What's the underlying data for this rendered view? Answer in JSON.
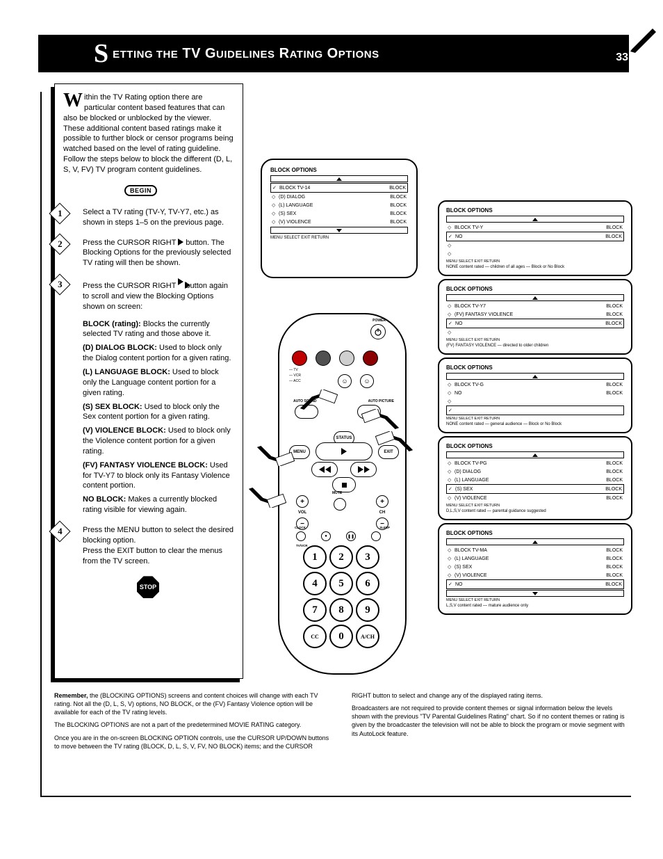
{
  "header": {
    "big_letter": "S",
    "title_small": "ETTING THE",
    "title_main": " TV G",
    "title_small2": "UIDELINES",
    "title_main2": " R",
    "title_small3": "ATING",
    "title_main3": " O",
    "title_small4": "PTIONS",
    "page": "33"
  },
  "intro": "ithin the TV Rating option there are particular content based features that can also be blocked or unblocked by the viewer. These additional content based ratings make it possible to further block or censor programs being watched based on the level of rating guideline. Follow the steps below to block the different (D, L, S, V, FV) TV program content guidelines.",
  "begin_label": "BEGIN",
  "stop_label": "STOP",
  "steps": [
    {
      "n": "1",
      "text_a": "Select a TV rating (TV-Y, TV-Y7, etc.) as shown in steps 1–5 on the previous page.",
      "text_b": ""
    },
    {
      "n": "2",
      "text_a": "Press the CURSOR RIGHT",
      "text_b": "button. The Blocking Options for the previously selected TV rating will then be shown.",
      "icon": "play"
    },
    {
      "n": "3",
      "text_a": "Press the CURSOR RIGHT",
      "text_b": "button again to scroll and view the Blocking Options shown on screen:",
      "icon": "ff",
      "options": [
        "BLOCK (rating): Blocks the currently selected TV rating and those above it.",
        "(D) DIALOG BLOCK: Used to block only the Dialog content portion for a given rating.",
        "(L) LANGUAGE BLOCK: Used to block only the Language content portion for a given rating.",
        "(S) SEX BLOCK: Used to block only the Sex content portion for a given rating.",
        "(V) VIOLENCE BLOCK: Used to block only the Violence content portion for a given rating.",
        "(FV) FANTASY VIOLENCE BLOCK: Used for TV-Y7 to block only its Fantasy Violence content portion.",
        "NO BLOCK: Makes a currently blocked rating visible for viewing again."
      ]
    },
    {
      "n": "4",
      "text_a": "Press the MENU button to select the desired blocking option.",
      "text_b": "Press the EXIT button to clear the menus from the TV screen."
    }
  ],
  "tv_menu": {
    "title": "BLOCK OPTIONS",
    "top_arrow": true,
    "items": [
      {
        "mark": "✓",
        "left": "BLOCK TV-14",
        "right": "BLOCK",
        "sel": true
      },
      {
        "mark": "◇",
        "left": "(D) DIALOG",
        "right": "BLOCK"
      },
      {
        "mark": "◇",
        "left": "(L) LANGUAGE",
        "right": "BLOCK"
      },
      {
        "mark": "◇",
        "left": "(S) SEX",
        "right": "BLOCK"
      },
      {
        "mark": "◇",
        "left": "(V) VIOLENCE",
        "right": "BLOCK"
      }
    ],
    "bottom_arrow": true,
    "footer": "MENU    SELECT      EXIT    RETURN"
  },
  "right_panels": [
    {
      "title": "BLOCK OPTIONS",
      "items": [
        {
          "mark": "◇",
          "left": "BLOCK TV-Y",
          "right": "BLOCK",
          "sel": false
        },
        {
          "mark": "✓",
          "left": "NO",
          "right": "BLOCK",
          "sel": true
        },
        {
          "mark": "◇",
          "left": "",
          "right": ""
        },
        {
          "mark": "◇",
          "left": "",
          "right": ""
        }
      ],
      "footer": "MENU    SELECT      EXIT    RETURN",
      "meta": "NONE content rated — children of all ages — Block or No Block"
    },
    {
      "title": "BLOCK OPTIONS",
      "items": [
        {
          "mark": "◇",
          "left": "BLOCK TV-Y7",
          "right": "BLOCK"
        },
        {
          "mark": "◇",
          "left": "(FV) FANTASY VIOLENCE",
          "right": "BLOCK"
        },
        {
          "mark": "✓",
          "left": "NO",
          "right": "BLOCK",
          "sel": true
        },
        {
          "mark": "◇",
          "left": "",
          "right": ""
        }
      ],
      "footer": "MENU    SELECT      EXIT    RETURN",
      "meta": "(FV) FANTASY VIOLENCE — directed to older children"
    },
    {
      "title": "BLOCK OPTIONS",
      "items": [
        {
          "mark": "◇",
          "left": "BLOCK TV-G",
          "right": "BLOCK"
        },
        {
          "mark": "◇",
          "left": "NO",
          "right": "BLOCK"
        },
        {
          "mark": "◇",
          "left": "",
          "right": ""
        },
        {
          "mark": "✓",
          "left": "",
          "right": "",
          "sel": true
        }
      ],
      "footer": "MENU    SELECT      EXIT    RETURN",
      "meta": "NONE content rated — general audience — Block or No Block"
    },
    {
      "title": "BLOCK OPTIONS",
      "items": [
        {
          "mark": "◇",
          "left": "BLOCK TV-PG",
          "right": "BLOCK"
        },
        {
          "mark": "◇",
          "left": "(D) DIALOG",
          "right": "BLOCK"
        },
        {
          "mark": "◇",
          "left": "(L) LANGUAGE",
          "right": "BLOCK"
        },
        {
          "mark": "✓",
          "left": "(S) SEX",
          "right": "BLOCK",
          "sel": true
        },
        {
          "mark": "◇",
          "left": "(V) VIOLENCE",
          "right": "BLOCK"
        }
      ],
      "footer": "MENU    SELECT      EXIT    RETURN",
      "meta": "D,L,S,V content rated — parental guidance suggested"
    },
    {
      "title": "BLOCK OPTIONS",
      "items": [
        {
          "mark": "◇",
          "left": "BLOCK TV-MA",
          "right": "BLOCK"
        },
        {
          "mark": "◇",
          "left": "(L) LANGUAGE",
          "right": "BLOCK"
        },
        {
          "mark": "◇",
          "left": "(S) SEX",
          "right": "BLOCK"
        },
        {
          "mark": "◇",
          "left": "(V) VIOLENCE",
          "right": "BLOCK"
        },
        {
          "mark": "✓",
          "left": "NO",
          "right": "BLOCK",
          "sel": true
        }
      ],
      "footer": "MENU    SELECT      EXIT    RETURN",
      "meta": "L,S,V content rated — mature audience only"
    }
  ],
  "remote": {
    "power": "POWER",
    "modes": [
      "TV",
      "VCR",
      "ACC"
    ],
    "color_buttons": [
      "#c00000",
      "#505050",
      "#cfcfcf",
      "#8b0000"
    ],
    "auto_sound": "AUTO SOUND",
    "auto_picture": "AUTO PICTURE",
    "menu": "MENU",
    "status": "STATUS",
    "exit": "EXIT",
    "mute": "MUTE",
    "vol": "VOL",
    "ch": "CH",
    "clock": "CLOCK",
    "sleep": "SLEEP",
    "tvvcr": "TV/VCR",
    "keys": [
      "1",
      "2",
      "3",
      "4",
      "5",
      "6",
      "7",
      "8",
      "9",
      "CC",
      "0",
      "A/CH"
    ]
  },
  "bottom": [
    {
      "lead": "Remember,",
      "text": " the (BLOCKING OPTIONS) screens and content choices will change with each TV rating. Not all the (D, L, S, V) options, NO BLOCK, or the (FV) Fantasy Violence option will be available for each of the TV rating levels."
    },
    {
      "text": "The BLOCKING OPTIONS are not a part of the predetermined MOVIE RATING category."
    },
    {
      "text": "Once you are in the on-screen BLOCKING OPTION controls, use the CURSOR UP/DOWN buttons to move between the TV rating (BLOCK, D, L, S, V, FV, NO BLOCK) items; and the CURSOR RIGHT button to select and change any of the displayed rating items."
    },
    {
      "text": "Broadcasters are not required to provide content themes or signal information below the levels shown with the previous \"TV Parental Guidelines Rating\" chart. So if no content themes or rating is given by the broadcaster the television will not be able to block the program or movie segment with its AutoLock feature."
    }
  ]
}
